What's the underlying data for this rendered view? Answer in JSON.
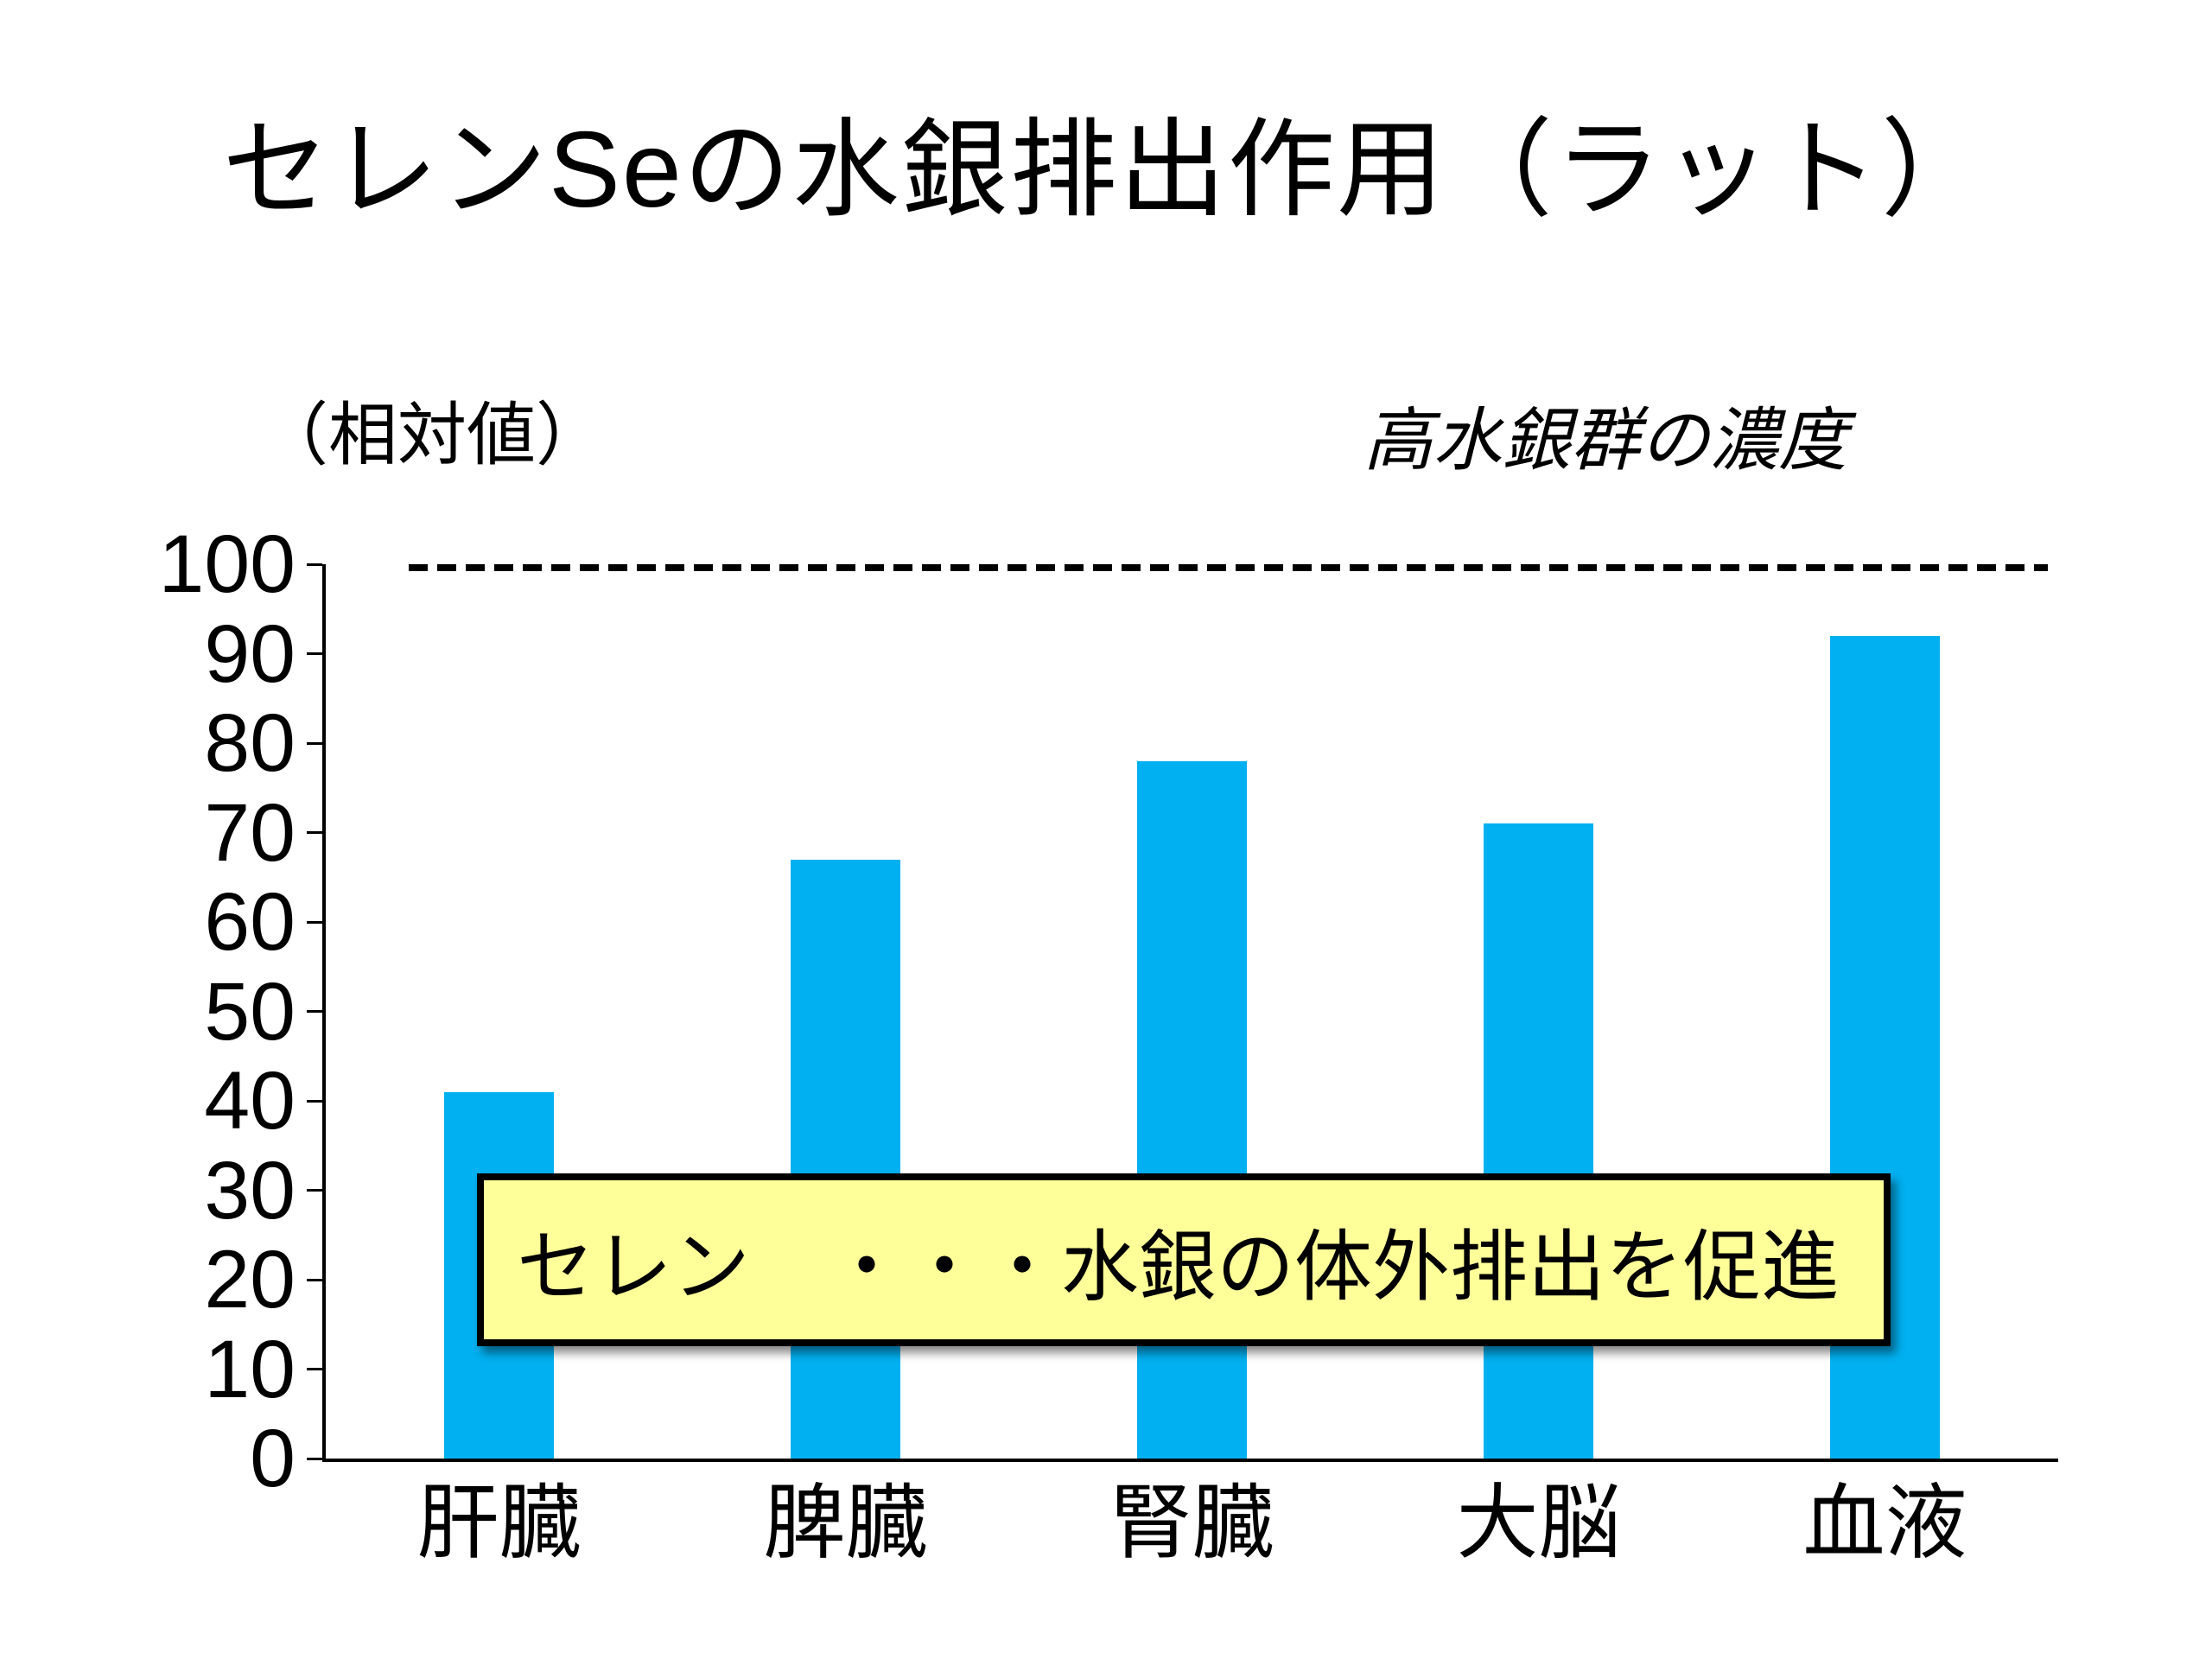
{
  "slide": {
    "background": "#FFFFFF"
  },
  "colors": {
    "bar": "#00B0F0",
    "annotation_bg": "#FFFF99",
    "annotation_border": "#000000",
    "reference_line": "#000000",
    "ink": "#000000"
  },
  "chart_data": {
    "type": "bar",
    "title": "セレンSeの水銀排出作用（ラット）",
    "ylabel": "（相対値）",
    "xlabel": "",
    "categories": [
      "肝臓",
      "脾臓",
      "腎臓",
      "大脳",
      "血液"
    ],
    "values": [
      41,
      67,
      78,
      71,
      92
    ],
    "ylim": [
      0,
      100
    ],
    "ytick_step": 10,
    "yticks": [
      0,
      10,
      20,
      30,
      40,
      50,
      60,
      70,
      80,
      90,
      100
    ],
    "grid": false,
    "legend": "none",
    "reference_line": {
      "value": 100,
      "label": "高水銀群の濃度",
      "style": "dashed",
      "color": "#000000"
    },
    "annotation": "セレン　・・・水銀の体外排出を促進"
  }
}
